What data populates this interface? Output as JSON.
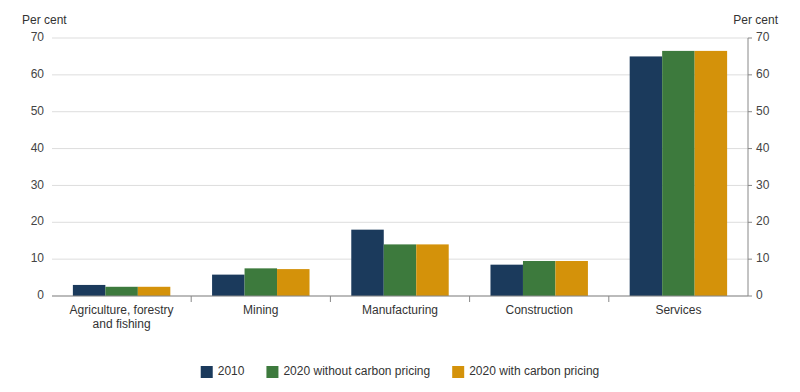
{
  "chart_data": {
    "type": "bar",
    "categories": [
      "Agriculture, forestry\nand fishing",
      "Mining",
      "Manufacturing",
      "Construction",
      "Services"
    ],
    "series": [
      {
        "name": "2010",
        "color": "#1b3a5c",
        "values": [
          3.0,
          5.8,
          18.0,
          8.5,
          65.0
        ]
      },
      {
        "name": "2020 without carbon pricing",
        "color": "#3d7a3d",
        "values": [
          2.5,
          7.5,
          14.0,
          9.5,
          66.5
        ]
      },
      {
        "name": "2020 with carbon pricing",
        "color": "#d4920a",
        "values": [
          2.5,
          7.3,
          14.0,
          9.5,
          66.5
        ]
      }
    ],
    "ylabel": "Per cent",
    "y2label": "Per cent",
    "ylim": [
      0,
      70
    ],
    "yticks": [
      0,
      10,
      20,
      30,
      40,
      50,
      60,
      70
    ],
    "y2lim": [
      0,
      70
    ],
    "y2ticks": [
      0,
      10,
      20,
      30,
      40,
      50,
      60,
      70
    ],
    "grid": true,
    "legend": "bottom"
  }
}
